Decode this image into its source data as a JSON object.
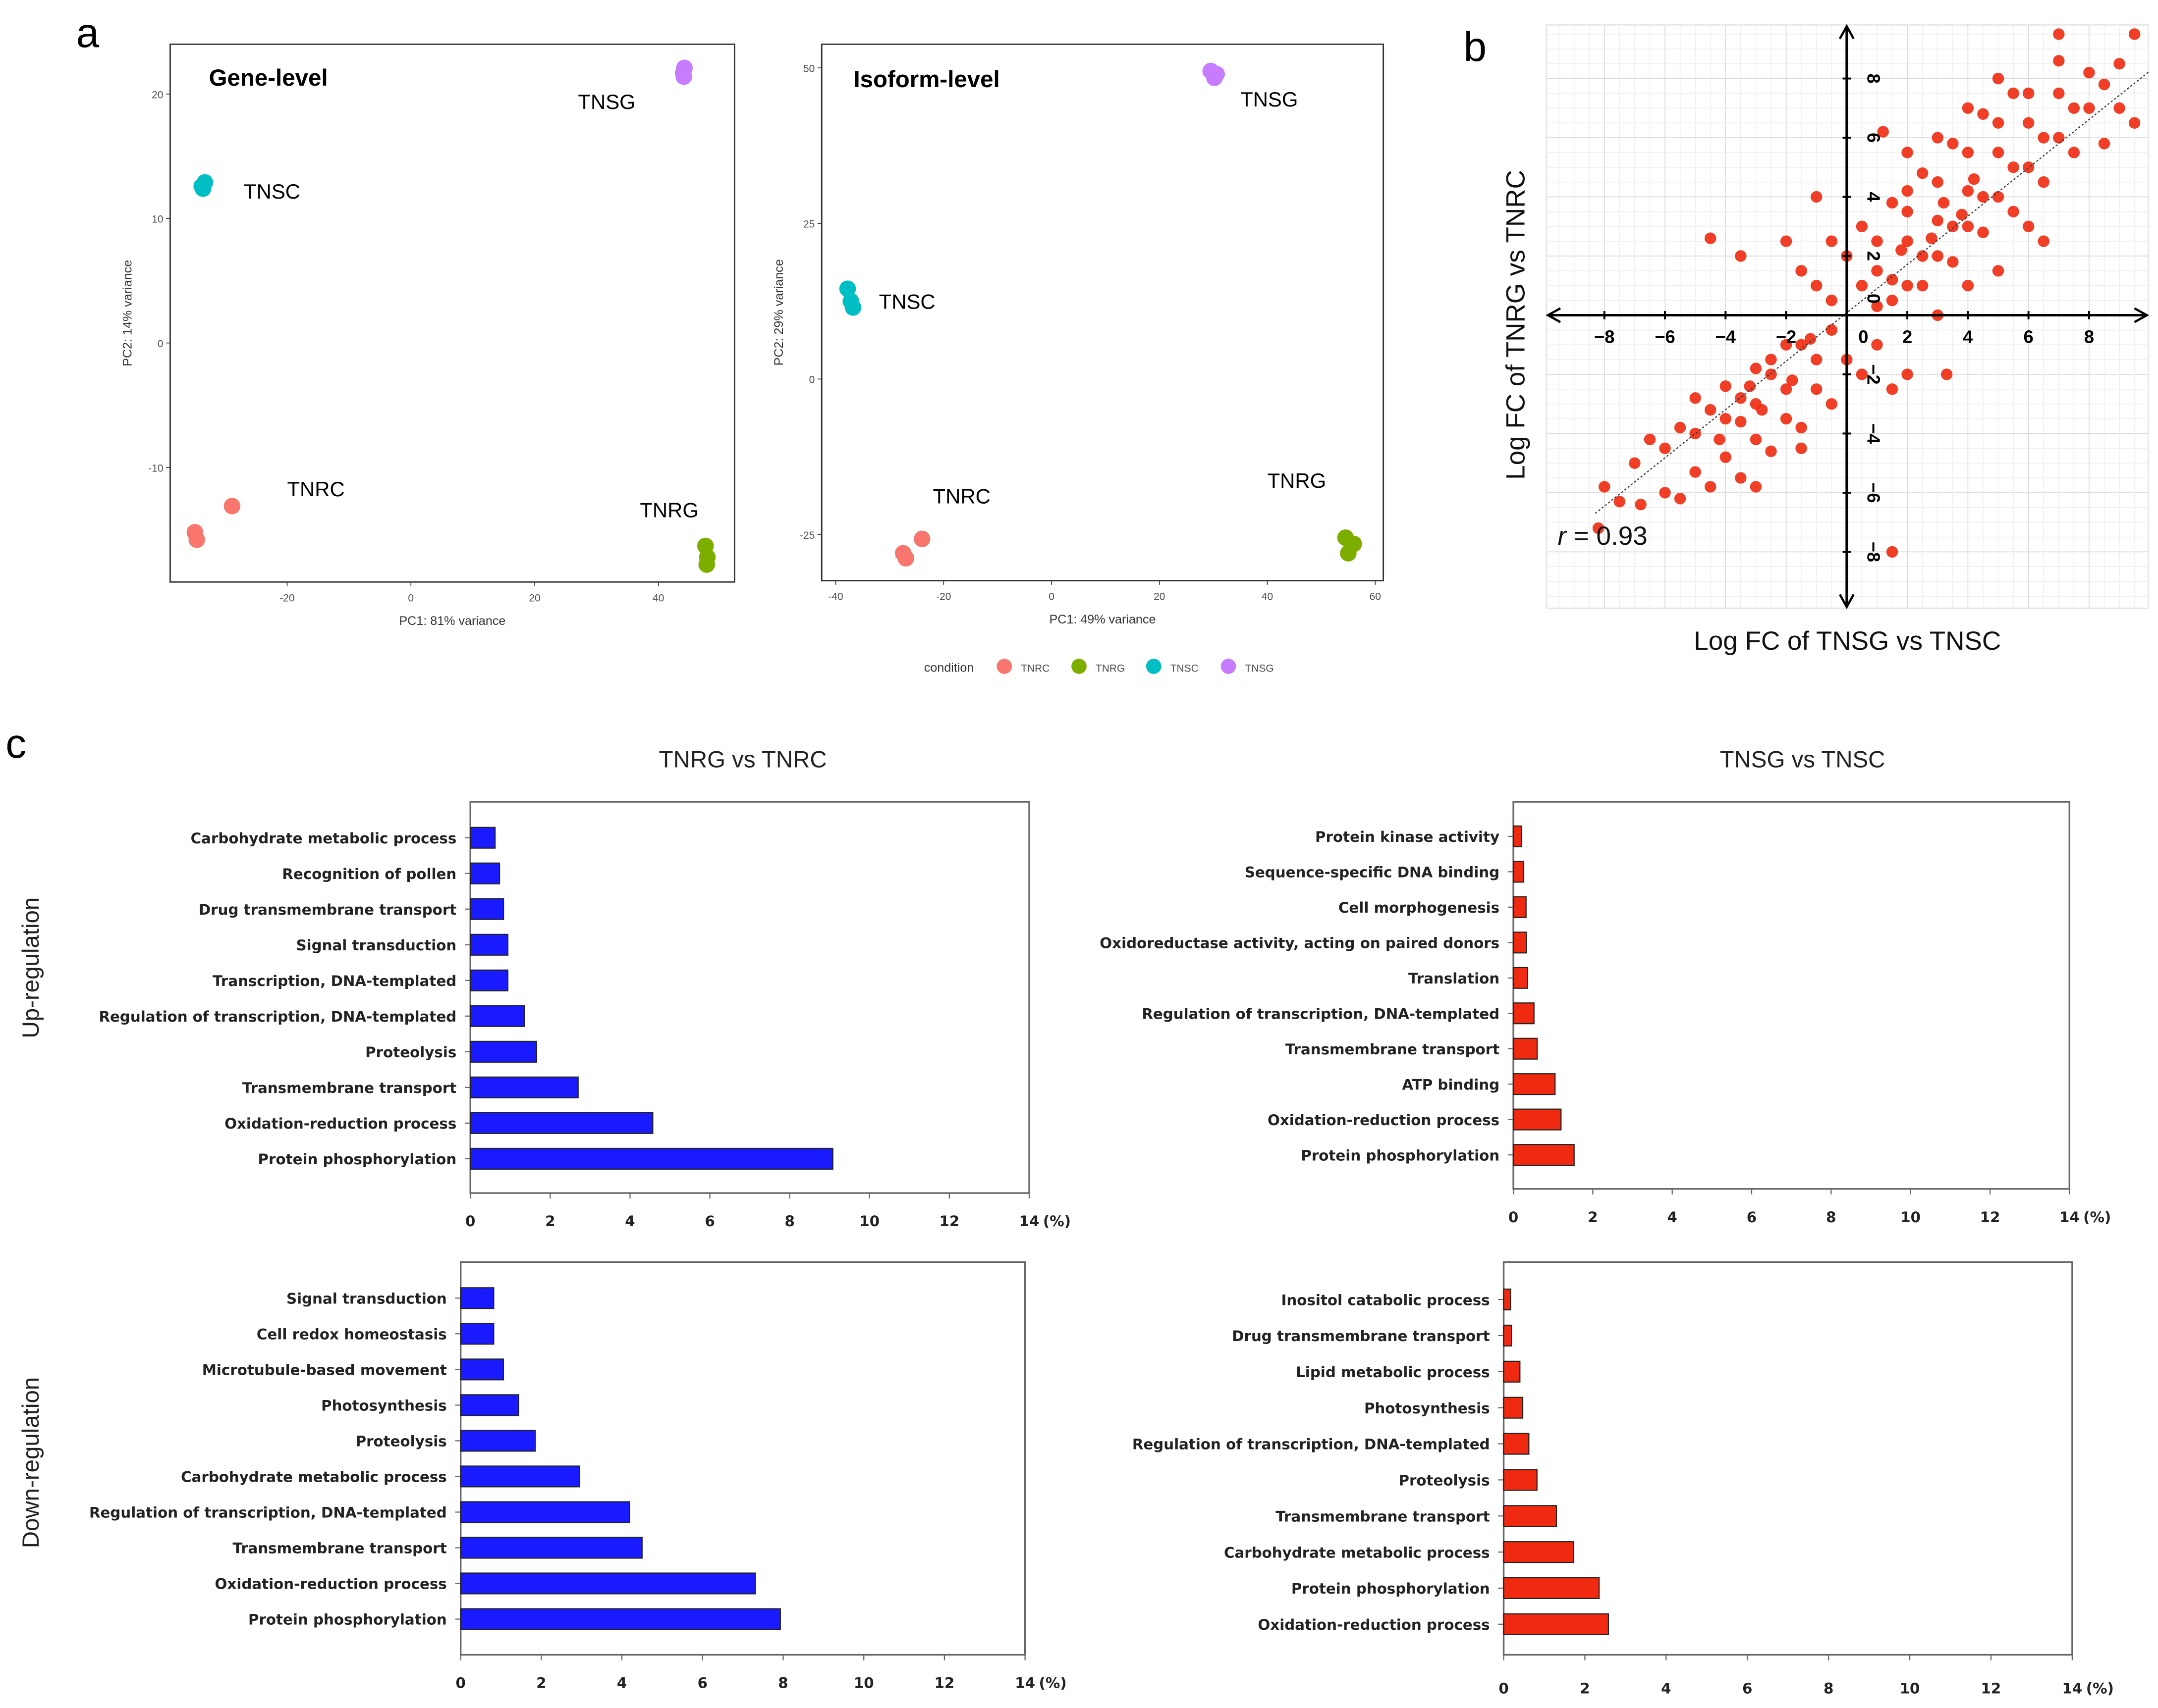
{
  "panel_labels": {
    "a": "a",
    "b": "b",
    "c": "c"
  },
  "row_labels": {
    "up": "Up-regulation",
    "down": "Down-regulation"
  },
  "legend": {
    "title": "condition",
    "entries": [
      {
        "name": "TNRC",
        "color": "#F8766D"
      },
      {
        "name": "TNRG",
        "color": "#7CAE00"
      },
      {
        "name": "TNSC",
        "color": "#00BFC4"
      },
      {
        "name": "TNSG",
        "color": "#C77CFF"
      }
    ]
  },
  "chart_data": [
    {
      "type": "scatter",
      "title": "Gene-level",
      "xlabel": "PC1: 81% variance",
      "ylabel": "PC2: 14% variance",
      "xlim": [
        -38.9,
        52.3
      ],
      "ylim": [
        -19.2,
        24
      ],
      "xticks": [
        -20,
        0,
        20,
        40
      ],
      "yticks": [
        -10,
        0,
        10,
        20
      ],
      "series": [
        {
          "name": "TNRC",
          "color": "#F8766D",
          "points": [
            [
              -34.9,
              -15.2
            ],
            [
              -34.6,
              -15.8
            ],
            [
              -28.9,
              -13.1
            ]
          ],
          "label_at": [
            -20,
            -12.3
          ]
        },
        {
          "name": "TNRG",
          "color": "#7CAE00",
          "points": [
            [
              47.6,
              -16.3
            ],
            [
              47.9,
              -17.2
            ],
            [
              47.8,
              -17.8
            ]
          ],
          "label_at": [
            37,
            -14
          ]
        },
        {
          "name": "TNSC",
          "color": "#00BFC4",
          "points": [
            [
              -33.8,
              12.6
            ],
            [
              -33.3,
              12.9
            ],
            [
              -33.6,
              12.4
            ]
          ],
          "label_at": [
            -27,
            11.6
          ]
        },
        {
          "name": "TNSG",
          "color": "#C77CFF",
          "points": [
            [
              44.1,
              21.4
            ],
            [
              44.2,
              22.1
            ],
            [
              44.0,
              21.7
            ]
          ],
          "label_at": [
            27,
            18.8
          ]
        }
      ]
    },
    {
      "type": "scatter",
      "title": "Isoform-level",
      "xlabel": "PC1: 49% variance",
      "ylabel": "PC2: 29% variance",
      "xlim": [
        -42.6,
        61.5
      ],
      "ylim": [
        -32.4,
        53.8
      ],
      "xticks": [
        -40,
        -20,
        0,
        20,
        40,
        60
      ],
      "yticks": [
        -25,
        0,
        25,
        50
      ],
      "series": [
        {
          "name": "TNRC",
          "color": "#F8766D",
          "points": [
            [
              -27.5,
              -28
            ],
            [
              -27,
              -28.8
            ],
            [
              -24,
              -25.7
            ]
          ],
          "label_at": [
            -22,
            -20
          ]
        },
        {
          "name": "TNRG",
          "color": "#7CAE00",
          "points": [
            [
              54.5,
              -25.5
            ],
            [
              56,
              -26.5
            ],
            [
              55,
              -28
            ]
          ],
          "label_at": [
            40,
            -17.5
          ]
        },
        {
          "name": "TNSC",
          "color": "#00BFC4",
          "points": [
            [
              -37.8,
              14.5
            ],
            [
              -37.2,
              12.5
            ],
            [
              -36.8,
              11.5
            ]
          ],
          "label_at": [
            -32,
            11.3
          ]
        },
        {
          "name": "TNSG",
          "color": "#C77CFF",
          "points": [
            [
              29.5,
              49.5
            ],
            [
              30.6,
              49
            ],
            [
              30.2,
              48.4
            ]
          ],
          "label_at": [
            35,
            43.8
          ]
        }
      ]
    },
    {
      "type": "scatter",
      "xlabel": "Log FC of TNSG vs TNSC",
      "ylabel": "Log FC of TNRG vs TNRC",
      "xlim": [
        -9.9,
        9.95
      ],
      "ylim": [
        -9.9,
        9.8
      ],
      "xticks": [
        -8,
        -6,
        -4,
        -2,
        0,
        2,
        4,
        6,
        8
      ],
      "yticks": [
        -8,
        -6,
        -4,
        -2,
        0,
        2,
        4,
        6,
        8
      ],
      "xtick_labels": [
        "−8",
        "−6",
        "−4",
        "−2",
        "0",
        "2",
        "4",
        "6",
        "8"
      ],
      "ytick_labels": [
        "−8",
        "−6",
        "−4",
        "−2",
        "0",
        "2",
        "4",
        "6",
        "8"
      ],
      "grid": true,
      "color": "#F02A10",
      "annotation": {
        "r_symbol": "r",
        "r_text": " = 0.93",
        "r": 0.93
      },
      "trend_line": [
        [
          -8.3,
          -6.7
        ],
        [
          10,
          8.25
        ]
      ],
      "points": [
        [
          0.5,
          1
        ],
        [
          1,
          1.5
        ],
        [
          1.5,
          1.2
        ],
        [
          2,
          2.5
        ],
        [
          2.5,
          2
        ],
        [
          3,
          3.2
        ],
        [
          3.5,
          3
        ],
        [
          4,
          4.2
        ],
        [
          4.5,
          4
        ],
        [
          5,
          5.5
        ],
        [
          5.5,
          5
        ],
        [
          6,
          6.5
        ],
        [
          6.5,
          6
        ],
        [
          7,
          7.5
        ],
        [
          7.5,
          7
        ],
        [
          8,
          8.2
        ],
        [
          8.5,
          7.8
        ],
        [
          9,
          8.5
        ],
        [
          1,
          2.5
        ],
        [
          2,
          3.5
        ],
        [
          3,
          4.5
        ],
        [
          4,
          5.5
        ],
        [
          5,
          6.5
        ],
        [
          6,
          7.5
        ],
        [
          7,
          8.6
        ],
        [
          2,
          1
        ],
        [
          3,
          2
        ],
        [
          4,
          3
        ],
        [
          5,
          4
        ],
        [
          6,
          5
        ],
        [
          7,
          6
        ],
        [
          8,
          7
        ],
        [
          0,
          2
        ],
        [
          0.5,
          3
        ],
        [
          1.5,
          3.8
        ],
        [
          2.5,
          4.8
        ],
        [
          3.5,
          5.8
        ],
        [
          4.5,
          6.8
        ],
        [
          5.5,
          7.5
        ],
        [
          1,
          0.3
        ],
        [
          2.5,
          1
        ],
        [
          3.5,
          1.8
        ],
        [
          4.5,
          2.8
        ],
        [
          5.5,
          3.5
        ],
        [
          6.5,
          4.5
        ],
        [
          7.5,
          5.5
        ],
        [
          -0.5,
          0.5
        ],
        [
          -1,
          1
        ],
        [
          -1.5,
          1.5
        ],
        [
          -0.5,
          2.5
        ],
        [
          1.5,
          0.5
        ],
        [
          3,
          0
        ],
        [
          5,
          1.5
        ],
        [
          6.5,
          2.5
        ],
        [
          8.5,
          5.8
        ],
        [
          7,
          9.5
        ],
        [
          9.5,
          9.5
        ],
        [
          4,
          7
        ],
        [
          2,
          5.5
        ],
        [
          -1,
          4
        ],
        [
          -2,
          2.5
        ],
        [
          -3.5,
          2
        ],
        [
          -4.5,
          2.6
        ],
        [
          1.2,
          6.2
        ],
        [
          6,
          3
        ],
        [
          4,
          1
        ],
        [
          9,
          7
        ],
        [
          9.5,
          6.5
        ],
        [
          3,
          6
        ],
        [
          5,
          8
        ],
        [
          2,
          4.2
        ],
        [
          3.2,
          3.8
        ],
        [
          4.2,
          4.6
        ],
        [
          2.8,
          2.6
        ],
        [
          1.8,
          2.2
        ],
        [
          3.8,
          3.4
        ],
        [
          -0.5,
          -0.5
        ],
        [
          -1,
          -1.5
        ],
        [
          -1.5,
          -1
        ],
        [
          -2,
          -2.5
        ],
        [
          -2.5,
          -2
        ],
        [
          -3,
          -3
        ],
        [
          -3.5,
          -2.8
        ],
        [
          -4,
          -3.5
        ],
        [
          -4.5,
          -3.2
        ],
        [
          -5,
          -4
        ],
        [
          -5.5,
          -3.8
        ],
        [
          -6,
          -4.5
        ],
        [
          -6.5,
          -4.2
        ],
        [
          -7,
          -5
        ],
        [
          -2,
          -1
        ],
        [
          -3,
          -1.8
        ],
        [
          -4,
          -2.4
        ],
        [
          -5,
          -2.8
        ],
        [
          -1,
          -2.5
        ],
        [
          -2,
          -3.5
        ],
        [
          -3,
          -4.2
        ],
        [
          -4,
          -4.8
        ],
        [
          -5,
          -5.3
        ],
        [
          -6,
          -6
        ],
        [
          0,
          -1.5
        ],
        [
          0.5,
          -2
        ],
        [
          -0.5,
          -3
        ],
        [
          -1.5,
          -3.8
        ],
        [
          -2.5,
          -4.6
        ],
        [
          -3.5,
          -5.5
        ],
        [
          -4.5,
          -5.8
        ],
        [
          -5.5,
          -6.2
        ],
        [
          -7.5,
          -6.3
        ],
        [
          -8,
          -5.8
        ],
        [
          -8.2,
          -7.2
        ],
        [
          -6.8,
          -6.4
        ],
        [
          -3,
          -5.8
        ],
        [
          -1.5,
          -4.5
        ],
        [
          1,
          -1
        ],
        [
          1.5,
          -2.5
        ],
        [
          2,
          -2
        ],
        [
          3.3,
          -2
        ],
        [
          1.5,
          -8
        ],
        [
          -2.5,
          -1.5
        ],
        [
          -3.5,
          -3.6
        ],
        [
          -1.8,
          -2.2
        ],
        [
          -2.8,
          -3.2
        ],
        [
          -4.2,
          -4.2
        ],
        [
          -3.2,
          -2.4
        ],
        [
          -1.2,
          -0.8
        ]
      ]
    },
    {
      "type": "bar",
      "orientation": "horizontal",
      "title": "TNRG vs TNRC",
      "row": "Up-regulation",
      "color": "#1A1AFF",
      "categories": [
        "Carbohydrate metabolic process",
        "Recognition of pollen",
        "Drug transmembrane transport",
        "Signal transduction",
        "Transcription, DNA-templated",
        "Regulation of transcription, DNA-templated",
        "Proteolysis",
        "Transmembrane transport",
        "Oxidation-reduction process",
        "Protein phosphorylation"
      ],
      "values": [
        0.62,
        0.73,
        0.83,
        0.94,
        0.94,
        1.35,
        1.66,
        2.7,
        4.57,
        9.08
      ],
      "xlim": [
        0,
        14
      ],
      "xticks": [
        0,
        2,
        4,
        6,
        8,
        10,
        12,
        14
      ],
      "xunit": "(%)"
    },
    {
      "type": "bar",
      "orientation": "horizontal",
      "title": "TNSG vs TNSC",
      "row": "Up-regulation",
      "color": "#F02A10",
      "categories": [
        "Protein kinase activity",
        "Sequence-specific DNA binding",
        "Cell morphogenesis",
        "Oxidoreductase activity, acting on paired donors",
        "Translation",
        "Regulation of transcription, DNA-templated",
        "Transmembrane transport",
        "ATP binding",
        "Oxidation-reduction process",
        "Protein phosphorylation"
      ],
      "values": [
        0.2,
        0.25,
        0.32,
        0.33,
        0.36,
        0.52,
        0.6,
        1.05,
        1.2,
        1.53
      ],
      "xlim": [
        0,
        14
      ],
      "xticks": [
        0,
        2,
        4,
        6,
        8,
        10,
        12,
        14
      ],
      "xunit": "(%)"
    },
    {
      "type": "bar",
      "orientation": "horizontal",
      "row": "Down-regulation",
      "color": "#1A1AFF",
      "categories": [
        "Signal transduction",
        "Cell redox homeostasis",
        "Microtubule-based movement",
        "Photosynthesis",
        "Proteolysis",
        "Carbohydrate metabolic process",
        "Regulation of transcription, DNA-templated",
        "Transmembrane transport",
        "Oxidation-reduction process",
        "Protein phosphorylation"
      ],
      "values": [
        0.82,
        0.82,
        1.06,
        1.44,
        1.85,
        2.95,
        4.19,
        4.5,
        7.31,
        7.93
      ],
      "xlim": [
        0,
        14
      ],
      "xticks": [
        0,
        2,
        4,
        6,
        8,
        10,
        12,
        14
      ],
      "xunit": "(%)"
    },
    {
      "type": "bar",
      "orientation": "horizontal",
      "row": "Down-regulation",
      "color": "#F02A10",
      "categories": [
        "Inositol catabolic process",
        "Drug transmembrane transport",
        "Lipid metabolic process",
        "Photosynthesis",
        "Regulation of transcription, DNA-templated",
        "Proteolysis",
        "Transmembrane transport",
        "Carbohydrate metabolic process",
        "Protein phosphorylation",
        "Oxidation-reduction process"
      ],
      "values": [
        0.17,
        0.19,
        0.4,
        0.47,
        0.62,
        0.82,
        1.3,
        1.72,
        2.35,
        2.58
      ],
      "xlim": [
        0,
        14
      ],
      "xticks": [
        0,
        2,
        4,
        6,
        8,
        10,
        12,
        14
      ],
      "xunit": "(%)"
    }
  ]
}
